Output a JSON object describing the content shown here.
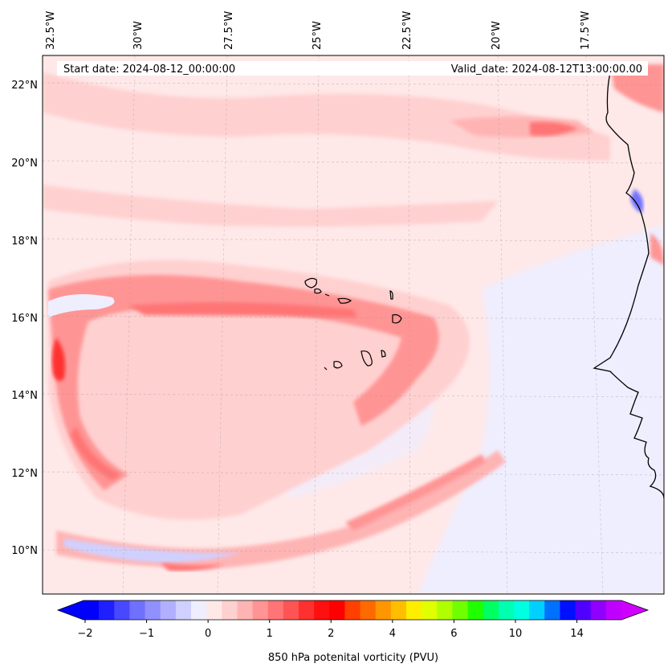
{
  "header": {
    "start_date": "Start date: 2024-08-12_00:00:00",
    "valid_date": "Valid_date: 2024-08-12T13:00:00.00"
  },
  "map": {
    "lon_labels": [
      "32.5°W",
      "30°W",
      "27.5°W",
      "25°W",
      "22.5°W",
      "20°W",
      "17.5°W"
    ],
    "lat_labels": [
      "22°N",
      "20°N",
      "18°N",
      "16°N",
      "14°N",
      "12°N",
      "10°N"
    ],
    "field": "850 hPa potential vorticity"
  },
  "colorbar": {
    "label": "850 hPa potenital vorticity (PVU)",
    "tick_labels": [
      "−2",
      "−1",
      "0",
      "1",
      "2",
      "4",
      "6",
      "10",
      "14"
    ],
    "colors": [
      "#0000ff",
      "#2020ff",
      "#4848ff",
      "#7070ff",
      "#9090ff",
      "#b0b0ff",
      "#d0d0ff",
      "#eeeeff",
      "#ffe8e8",
      "#ffd0d0",
      "#ffb4b4",
      "#ff9494",
      "#ff7474",
      "#ff5454",
      "#ff3030",
      "#ff1010",
      "#ff0000",
      "#ff4000",
      "#ff6a00",
      "#ff9600",
      "#ffbe00",
      "#ffee00",
      "#e0ff00",
      "#b0ff00",
      "#70ff00",
      "#20ff00",
      "#00ff60",
      "#00ffb0",
      "#00ffe0",
      "#00d0ff",
      "#0070ff",
      "#0010ff",
      "#5000ff",
      "#9000ff",
      "#c000ff"
    ],
    "under_color": "#0000ff",
    "over_color": "#d000ff"
  }
}
